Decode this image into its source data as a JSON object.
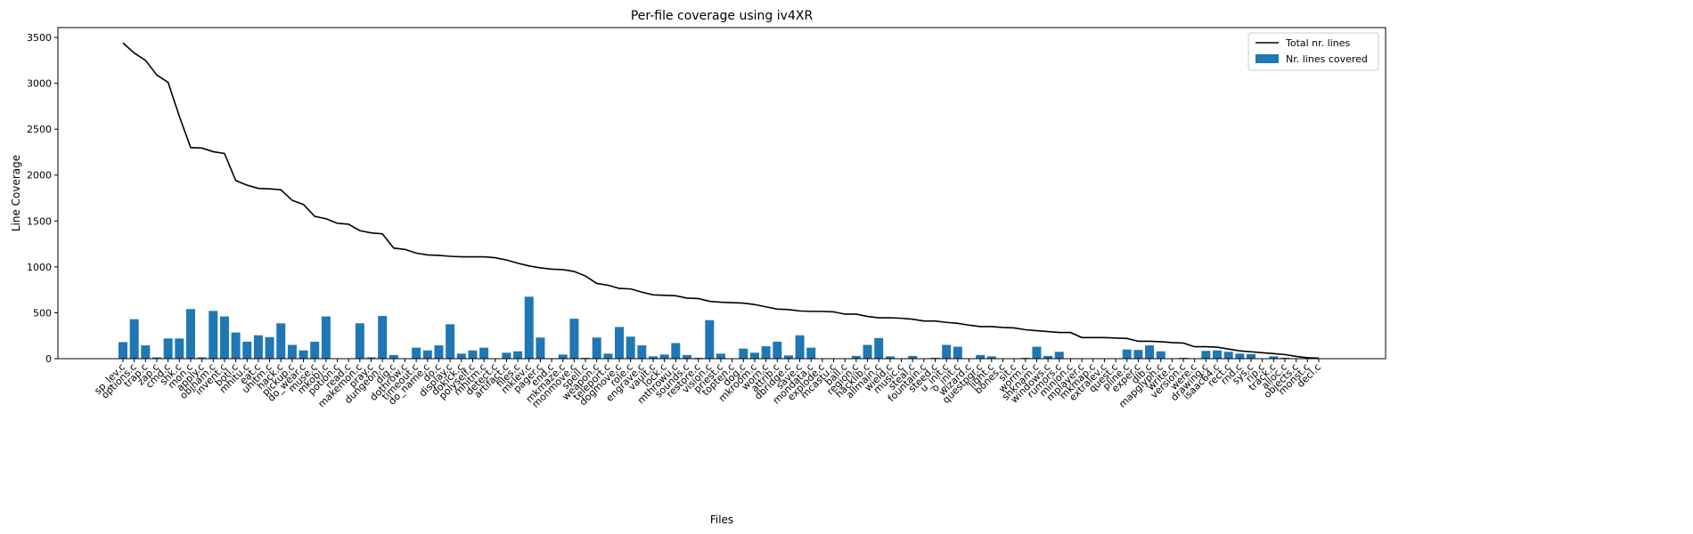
{
  "chart_data": {
    "type": "bar",
    "title": "Per-file coverage using iv4XR",
    "xlabel": "Files",
    "ylabel": "Line Coverage",
    "categories": [
      "sp_lev.c",
      "options.c",
      "trap.c",
      "zap.c",
      "cmd.c",
      "shk.c",
      "mon.c",
      "apply.c",
      "objnam.c",
      "invent.c",
      "botl.c",
      "mhitu.c",
      "eat.c",
      "uhitm.c",
      "hack.c",
      "pickup.c",
      "do_wear.c",
      "muse.c",
      "mkobj.c",
      "potion.c",
      "read.c",
      "makemon.c",
      "pray.c",
      "dungeon.c",
      "dig.c",
      "dothrow.c",
      "timeout.c",
      "do_name.c",
      "do.c",
      "display.c",
      "dokick.c",
      "polyself.c",
      "mhitm.c",
      "detect.c",
      "artifact.c",
      "files.c",
      "mklev.c",
      "pager.c",
      "end.c",
      "mkmaze.c",
      "monmove.c",
      "spell.c",
      "weapon.c",
      "teleport.c",
      "dogmove.c",
      "role.c",
      "engrave.c",
      "vault.c",
      "lock.c",
      "mthrowu.c",
      "sounds.c",
      "restore.c",
      "vision.c",
      "priest.c",
      "topten.c",
      "dog.c",
      "mkroom.c",
      "worn.c",
      "attrib.c",
      "dbridge.c",
      "save.c",
      "mondata.c",
      "explode.c",
      "mcastu.c",
      "ball.c",
      "region.c",
      "hacklib.c",
      "allmain.c",
      "wield.c",
      "music.c",
      "steal.c",
      "fountain.c",
      "steed.c",
      "u_init.c",
      "o_init.c",
      "wizard.c",
      "questpgr.c",
      "light.c",
      "bones.c",
      "sit.c",
      "worm.c",
      "shknam.c",
      "windows.c",
      "rumors.c",
      "minion.c",
      "mplayer.c",
      "mkmap.c",
      "extralev.c",
      "quest.c",
      "pline.c",
      "exper.c",
      "dlb.c",
      "mapglyph.c",
      "write.c",
      "version.c",
      "were.c",
      "drawing.c",
      "isaac64.c",
      "rect.c",
      "rnd.c",
      "sys.c",
      "rip.c",
      "track.c",
      "alloc.c",
      "objects.c",
      "monst.c",
      "decl.c"
    ],
    "series": [
      {
        "name": "Total nr. lines",
        "type": "line",
        "color": "#000000",
        "values": [
          3440,
          3330,
          3250,
          3090,
          3010,
          2640,
          2300,
          2295,
          2255,
          2235,
          1940,
          1890,
          1855,
          1850,
          1840,
          1725,
          1680,
          1550,
          1525,
          1475,
          1465,
          1395,
          1370,
          1360,
          1205,
          1190,
          1150,
          1130,
          1125,
          1115,
          1110,
          1110,
          1110,
          1100,
          1075,
          1040,
          1010,
          990,
          975,
          970,
          950,
          900,
          820,
          800,
          765,
          760,
          725,
          695,
          690,
          685,
          660,
          655,
          625,
          615,
          610,
          605,
          590,
          565,
          540,
          535,
          520,
          515,
          515,
          510,
          485,
          485,
          460,
          445,
          445,
          440,
          430,
          410,
          410,
          395,
          385,
          365,
          350,
          350,
          340,
          335,
          315,
          305,
          295,
          285,
          285,
          230,
          230,
          230,
          225,
          220,
          190,
          190,
          185,
          175,
          170,
          130,
          130,
          125,
          105,
          85,
          75,
          65,
          55,
          45,
          25,
          10,
          5
        ]
      },
      {
        "name": "Nr. lines covered",
        "type": "bar",
        "color": "#1f77b4",
        "values": [
          180,
          430,
          145,
          15,
          220,
          220,
          540,
          15,
          520,
          460,
          285,
          185,
          255,
          235,
          385,
          150,
          90,
          185,
          460,
          0,
          0,
          385,
          15,
          465,
          40,
          0,
          120,
          90,
          145,
          375,
          55,
          90,
          120,
          0,
          65,
          80,
          675,
          230,
          0,
          45,
          435,
          10,
          230,
          55,
          345,
          240,
          145,
          25,
          45,
          170,
          40,
          10,
          420,
          55,
          0,
          110,
          65,
          135,
          185,
          35,
          255,
          120,
          0,
          0,
          0,
          30,
          150,
          225,
          25,
          0,
          30,
          0,
          10,
          150,
          130,
          0,
          40,
          25,
          0,
          0,
          10,
          130,
          30,
          75,
          0,
          0,
          0,
          0,
          5,
          100,
          95,
          145,
          80,
          0,
          10,
          0,
          85,
          90,
          75,
          55,
          50,
          0,
          25,
          10,
          5,
          0,
          0
        ]
      }
    ],
    "ylim": [
      0,
      3607
    ],
    "yticks": [
      0,
      500,
      1000,
      1500,
      2000,
      2500,
      3000,
      3500
    ],
    "legend": "upper right"
  }
}
